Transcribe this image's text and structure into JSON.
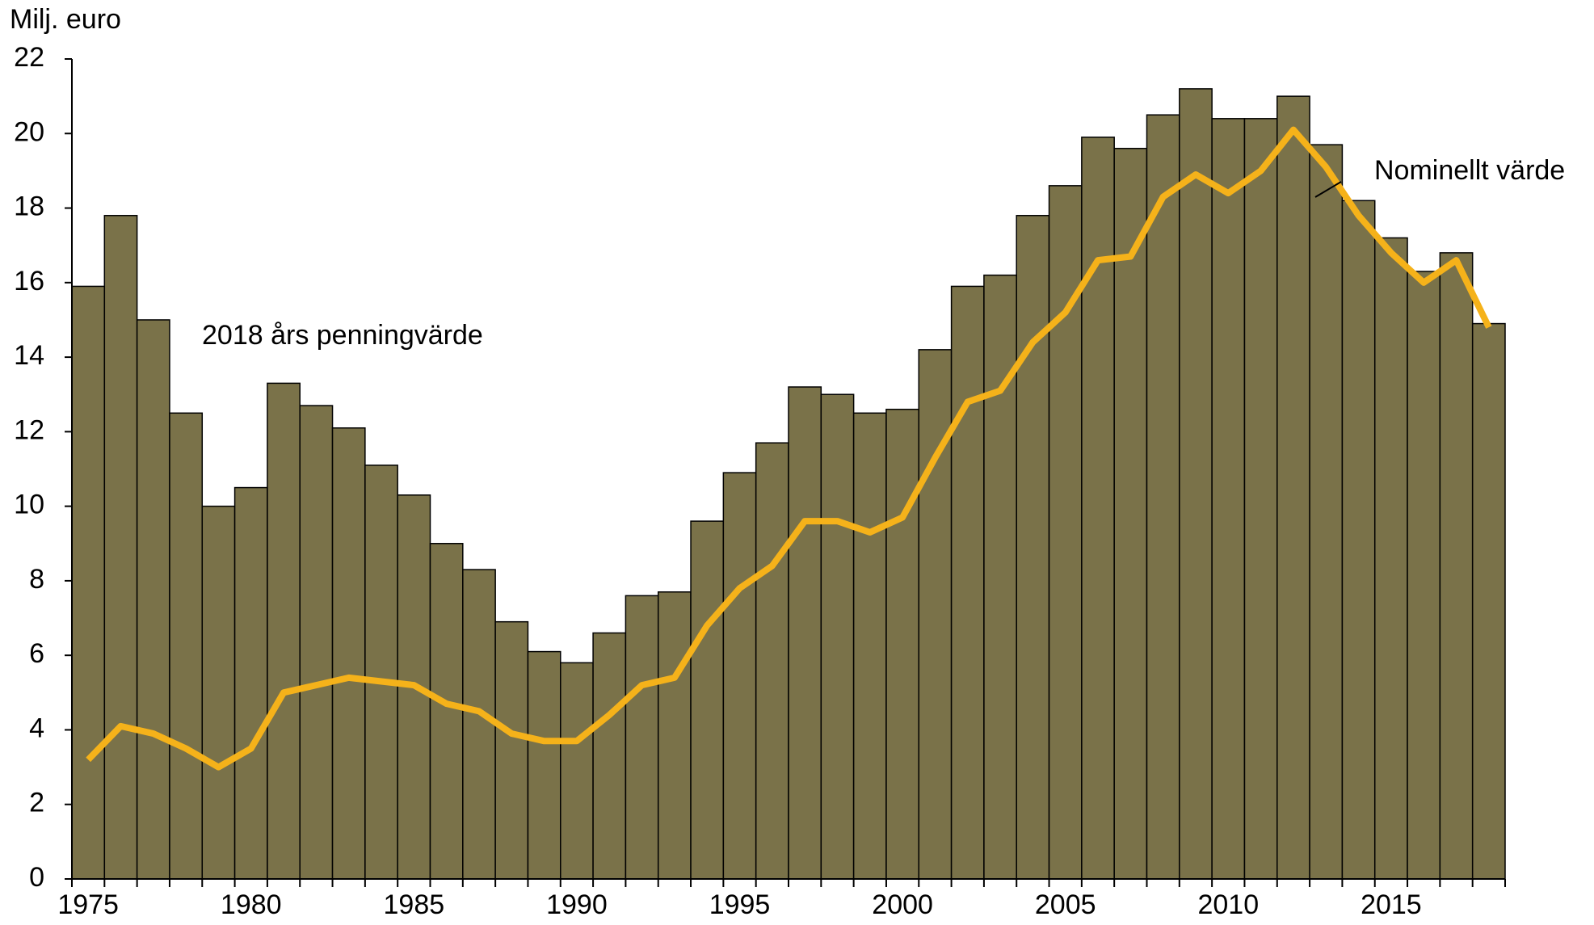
{
  "chart_data": {
    "type": "bar-line",
    "y_label": "Milj. euro",
    "x": [
      1975,
      1976,
      1977,
      1978,
      1979,
      1980,
      1981,
      1982,
      1983,
      1984,
      1985,
      1986,
      1987,
      1988,
      1989,
      1990,
      1991,
      1992,
      1993,
      1994,
      1995,
      1996,
      1997,
      1998,
      1999,
      2000,
      2001,
      2002,
      2003,
      2004,
      2005,
      2006,
      2007,
      2008,
      2009,
      2010,
      2011,
      2012,
      2013,
      2014,
      2015,
      2016,
      2017,
      2018
    ],
    "series": [
      {
        "name": "2018 års penningvärde",
        "type": "bar",
        "color": "#7a7249",
        "values": [
          15.9,
          17.8,
          15.0,
          12.5,
          10.0,
          10.5,
          13.3,
          12.7,
          12.1,
          11.1,
          10.3,
          9.0,
          8.3,
          6.9,
          6.1,
          5.8,
          6.6,
          7.6,
          7.7,
          9.6,
          10.9,
          11.7,
          13.2,
          13.0,
          12.5,
          12.6,
          14.2,
          15.9,
          16.2,
          17.8,
          18.6,
          19.9,
          19.6,
          20.5,
          21.2,
          20.4,
          20.4,
          21.0,
          19.7,
          18.2,
          17.2,
          16.3,
          16.8,
          14.9
        ]
      },
      {
        "name": "Nominellt värde",
        "type": "line",
        "color": "#f5b21a",
        "values": [
          3.2,
          4.1,
          3.9,
          3.5,
          3.0,
          3.5,
          5.0,
          5.2,
          5.4,
          5.3,
          5.2,
          4.7,
          4.5,
          3.9,
          3.7,
          3.7,
          4.4,
          5.2,
          5.4,
          6.8,
          7.8,
          8.4,
          9.6,
          9.6,
          9.3,
          9.7,
          11.3,
          12.8,
          13.1,
          14.4,
          15.2,
          16.6,
          16.7,
          18.3,
          18.9,
          18.4,
          19.0,
          20.1,
          19.1,
          17.8,
          16.8,
          16.0,
          16.6,
          14.8
        ]
      }
    ],
    "xlim": [
      1974.5,
      2018.5
    ],
    "xticks": [
      1975,
      1980,
      1985,
      1990,
      1995,
      2000,
      2005,
      2010,
      2015
    ],
    "ylim": [
      0,
      22
    ],
    "yticks": [
      0,
      2,
      4,
      6,
      8,
      10,
      12,
      14,
      16,
      18,
      20,
      22
    ],
    "grid": true
  }
}
